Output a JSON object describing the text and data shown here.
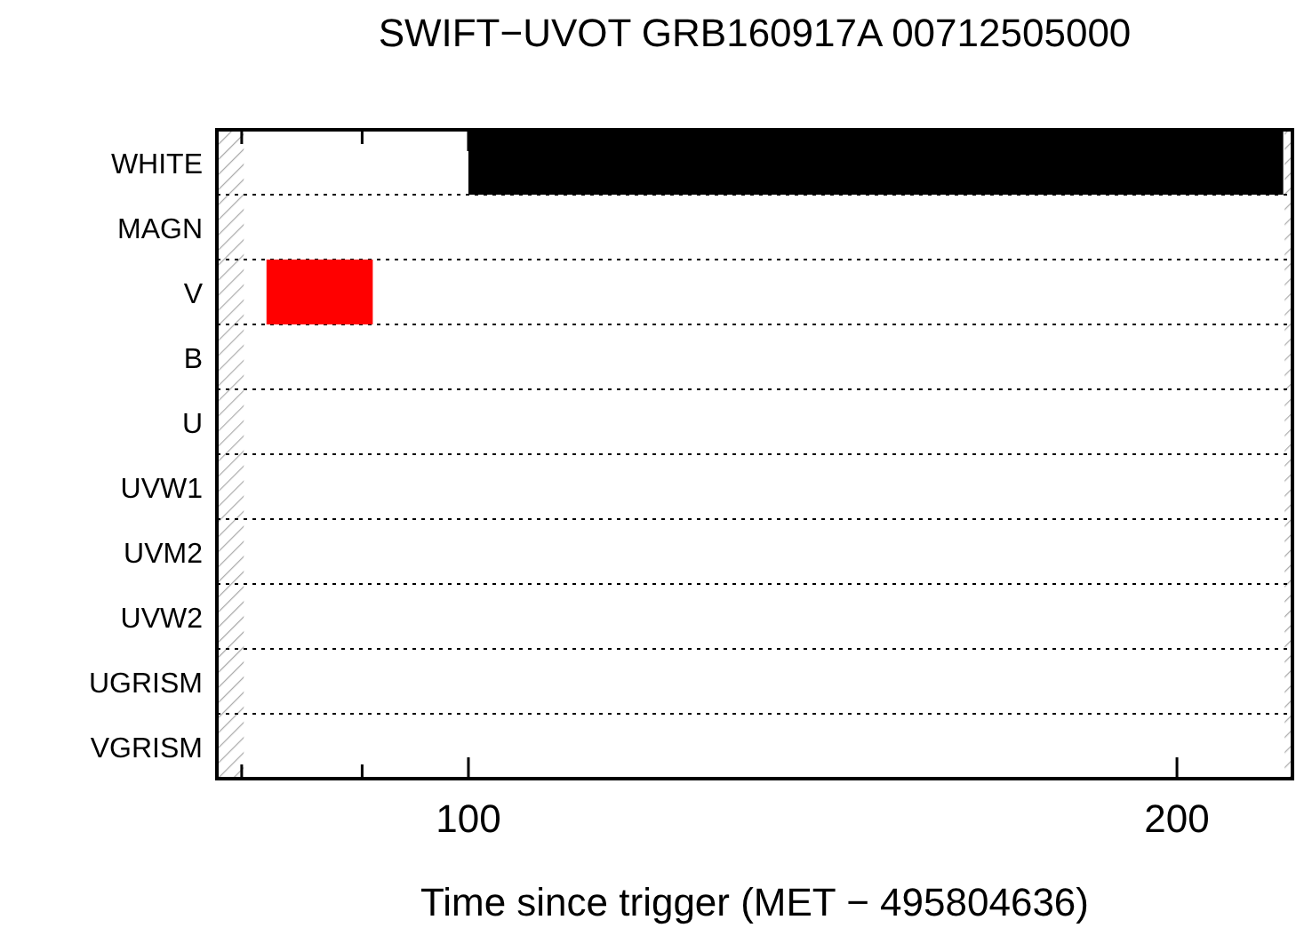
{
  "chart_data": {
    "type": "bar",
    "orientation": "horizontal",
    "title": "SWIFT−UVOT GRB160917A 00712505000",
    "xlabel": "Time since trigger (MET − 495804636)",
    "categories": [
      "WHITE",
      "MAGN",
      "V",
      "B",
      "U",
      "UVW1",
      "UVM2",
      "UVW2",
      "UGRISM",
      "VGRISM"
    ],
    "values": [
      115,
      null,
      15,
      null,
      null,
      null,
      null,
      null,
      null,
      null
    ],
    "base": [
      100,
      null,
      71.5,
      null,
      null,
      null,
      null,
      null,
      null,
      null
    ],
    "colors": [
      "#000000",
      null,
      "#ff0000",
      null,
      null,
      null,
      null,
      null,
      null,
      null
    ],
    "xlim": [
      64.5,
      216.3
    ],
    "xticks": [
      {
        "value": 68,
        "label": null
      },
      {
        "value": 85,
        "label": null
      },
      100,
      200
    ],
    "grid": "y",
    "bands": [
      {
        "axis": "x",
        "from": 64.5,
        "to": 68.3,
        "color": "#aaaaaa"
      },
      {
        "axis": "x",
        "from": 215.2,
        "to": 216.3,
        "color": "#aaaaaa"
      }
    ]
  }
}
